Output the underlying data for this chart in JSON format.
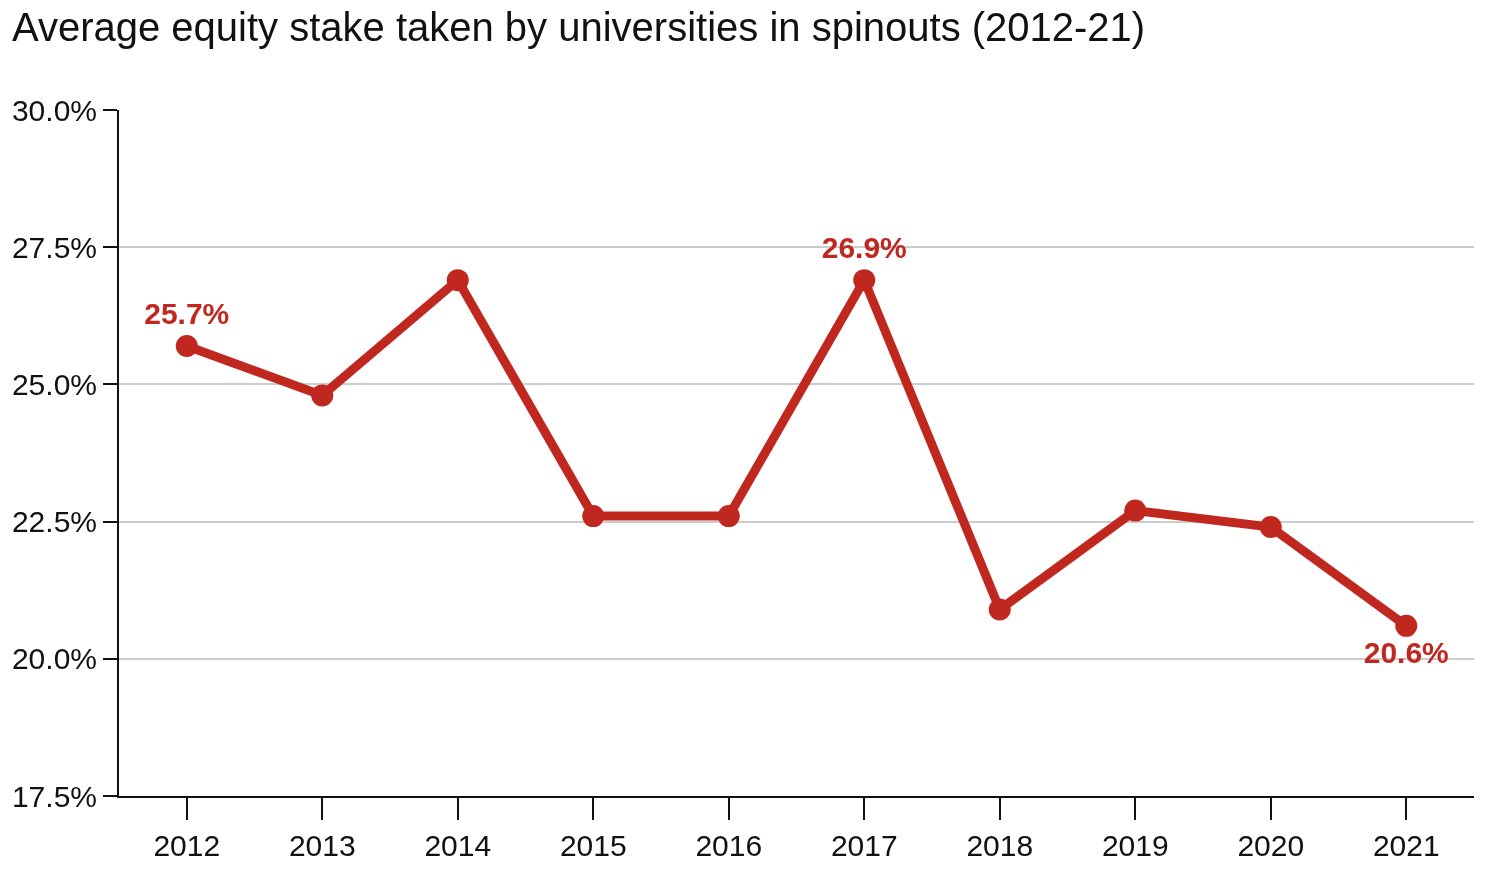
{
  "chart_data": {
    "type": "line",
    "title": "Average equity stake taken by universities in spinouts (2012-21)",
    "categories": [
      "2012",
      "2013",
      "2014",
      "2015",
      "2016",
      "2017",
      "2018",
      "2019",
      "2020",
      "2021"
    ],
    "values": [
      25.7,
      24.8,
      26.9,
      22.6,
      22.6,
      26.9,
      20.9,
      22.7,
      22.4,
      20.6
    ],
    "value_labels": [
      "25.7%",
      null,
      null,
      null,
      null,
      "26.9%",
      null,
      null,
      null,
      "20.6%"
    ],
    "color": "#c0281f",
    "marker": "circle",
    "line_style": "solid",
    "grid": "y",
    "ylim": [
      17.5,
      30
    ],
    "yticks": [
      {
        "value": 17.5,
        "label": "17.5%"
      },
      {
        "value": 20,
        "label": "20.0%"
      },
      {
        "value": 22.5,
        "label": "22.5%"
      },
      {
        "value": 25,
        "label": "25.0%"
      },
      {
        "value": 27.5,
        "label": "27.5%"
      },
      {
        "value": 30,
        "label": "30.0%"
      }
    ]
  }
}
